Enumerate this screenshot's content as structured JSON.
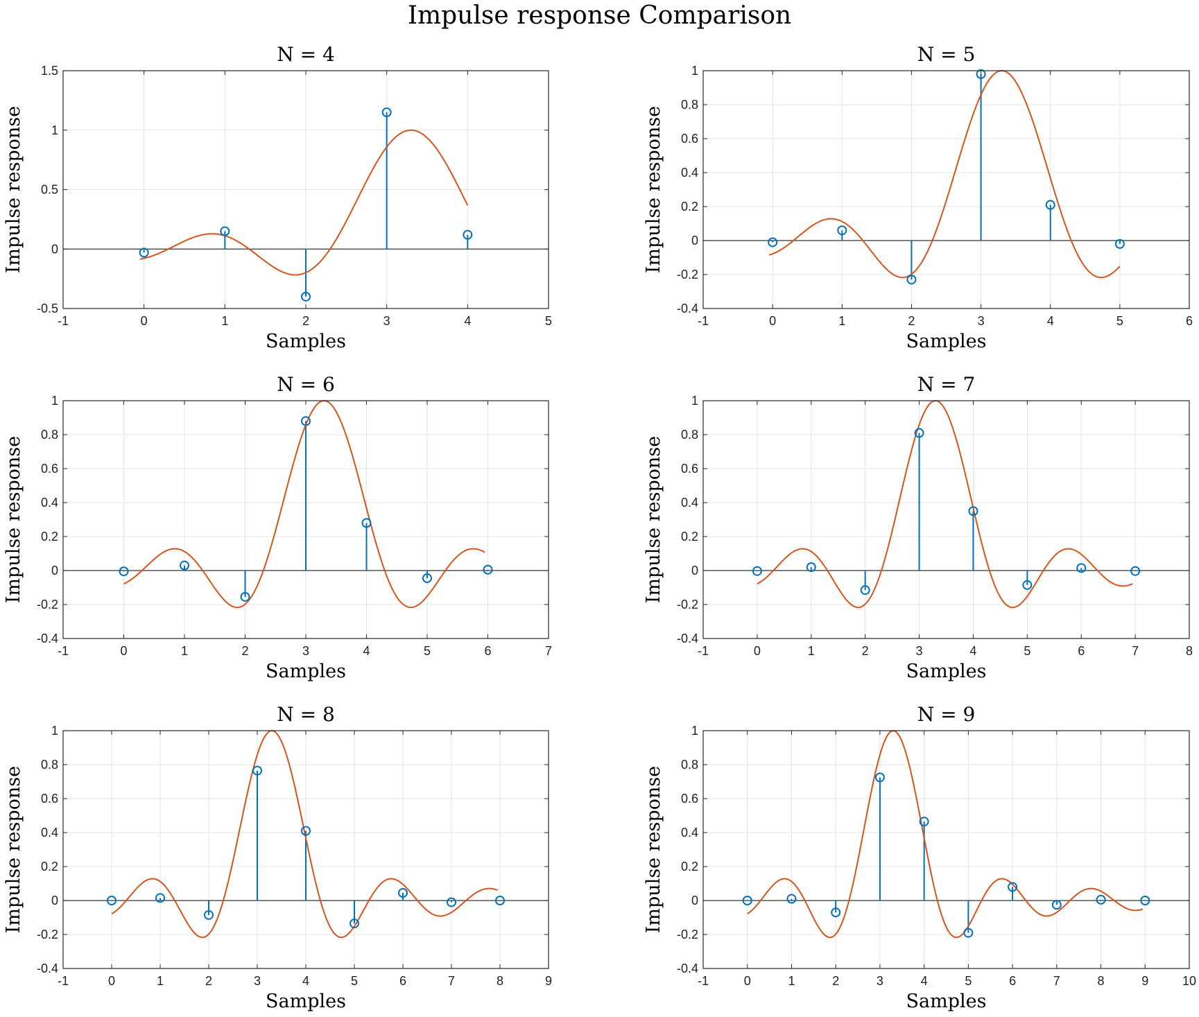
{
  "figure": {
    "title": "Impulse response Comparison"
  },
  "colors": {
    "stem": "#0072BD",
    "curve": "#D95319",
    "grid": "#e3e3e3",
    "axis": "#262626"
  },
  "chart_data": [
    {
      "type": "stem",
      "title": "N = 4",
      "xlabel": "Samples",
      "ylabel": "Impulse response",
      "xlim": [
        -1,
        5
      ],
      "ylim": [
        -0.5,
        1.5
      ],
      "xticks": [
        -1,
        0,
        1,
        2,
        3,
        4,
        5
      ],
      "yticks": [
        -0.5,
        0,
        0.5,
        1,
        1.5
      ],
      "grid": true,
      "series": [
        {
          "type": "stem",
          "x": [
            0,
            1,
            2,
            3,
            4
          ],
          "y": [
            -0.03,
            0.15,
            -0.4,
            1.15,
            0.12
          ]
        },
        {
          "type": "line",
          "x": [
            -0.05,
            4.0
          ]
        }
      ]
    },
    {
      "type": "stem",
      "title": "N = 5",
      "xlabel": "Samples",
      "ylabel": "Impulse response",
      "xlim": [
        -1,
        6
      ],
      "ylim": [
        -0.4,
        1
      ],
      "xticks": [
        -1,
        0,
        1,
        2,
        3,
        4,
        5,
        6
      ],
      "yticks": [
        -0.4,
        -0.2,
        0,
        0.2,
        0.4,
        0.6,
        0.8,
        1
      ],
      "grid": true,
      "series": [
        {
          "type": "stem",
          "x": [
            0,
            1,
            2,
            3,
            4,
            5
          ],
          "y": [
            -0.01,
            0.06,
            -0.23,
            0.98,
            0.21,
            -0.02
          ]
        },
        {
          "type": "line",
          "x": [
            -0.05,
            5.0
          ]
        }
      ]
    },
    {
      "type": "stem",
      "title": "N = 6",
      "xlabel": "Samples",
      "ylabel": "Impulse response",
      "xlim": [
        -1,
        7
      ],
      "ylim": [
        -0.4,
        1
      ],
      "xticks": [
        -1,
        0,
        1,
        2,
        3,
        4,
        5,
        6,
        7
      ],
      "yticks": [
        -0.4,
        -0.2,
        0,
        0.2,
        0.4,
        0.6,
        0.8,
        1
      ],
      "grid": true,
      "series": [
        {
          "type": "stem",
          "x": [
            0,
            1,
            2,
            3,
            4,
            5,
            6
          ],
          "y": [
            -0.005,
            0.03,
            -0.155,
            0.88,
            0.28,
            -0.045,
            0.005
          ]
        },
        {
          "type": "line",
          "x": [
            0.0,
            5.95
          ]
        }
      ]
    },
    {
      "type": "stem",
      "title": "N = 7",
      "xlabel": "Samples",
      "ylabel": "Impulse response",
      "xlim": [
        -1,
        8
      ],
      "ylim": [
        -0.4,
        1
      ],
      "xticks": [
        -1,
        0,
        1,
        2,
        3,
        4,
        5,
        6,
        7,
        8
      ],
      "yticks": [
        -0.4,
        -0.2,
        0,
        0.2,
        0.4,
        0.6,
        0.8,
        1
      ],
      "grid": true,
      "series": [
        {
          "type": "stem",
          "x": [
            0,
            1,
            2,
            3,
            4,
            5,
            6,
            7
          ],
          "y": [
            -0.003,
            0.02,
            -0.115,
            0.81,
            0.35,
            -0.085,
            0.015,
            -0.003
          ]
        },
        {
          "type": "line",
          "x": [
            0.0,
            6.95
          ]
        }
      ]
    },
    {
      "type": "stem",
      "title": "N = 8",
      "xlabel": "Samples",
      "ylabel": "Impulse response",
      "xlim": [
        -1,
        9
      ],
      "ylim": [
        -0.4,
        1
      ],
      "xticks": [
        -1,
        0,
        1,
        2,
        3,
        4,
        5,
        6,
        7,
        8,
        9
      ],
      "yticks": [
        -0.4,
        -0.2,
        0,
        0.2,
        0.4,
        0.6,
        0.8,
        1
      ],
      "grid": true,
      "series": [
        {
          "type": "stem",
          "x": [
            0,
            1,
            2,
            3,
            4,
            5,
            6,
            7,
            8
          ],
          "y": [
            0.0,
            0.015,
            -0.085,
            0.765,
            0.41,
            -0.135,
            0.045,
            -0.01,
            0.0
          ]
        },
        {
          "type": "line",
          "x": [
            0.0,
            7.95
          ]
        }
      ]
    },
    {
      "type": "stem",
      "title": "N = 9",
      "xlabel": "Samples",
      "ylabel": "Impulse response",
      "xlim": [
        -1,
        10
      ],
      "ylim": [
        -0.4,
        1
      ],
      "xticks": [
        -1,
        0,
        1,
        2,
        3,
        4,
        5,
        6,
        7,
        8,
        9,
        10
      ],
      "yticks": [
        -0.4,
        -0.2,
        0,
        0.2,
        0.4,
        0.6,
        0.8,
        1
      ],
      "grid": true,
      "series": [
        {
          "type": "stem",
          "x": [
            0,
            1,
            2,
            3,
            4,
            5,
            6,
            7,
            8,
            9
          ],
          "y": [
            0.0,
            0.01,
            -0.07,
            0.725,
            0.465,
            -0.19,
            0.08,
            -0.025,
            0.005,
            0.0
          ]
        },
        {
          "type": "line",
          "x": [
            0.0,
            8.95
          ]
        }
      ]
    }
  ]
}
